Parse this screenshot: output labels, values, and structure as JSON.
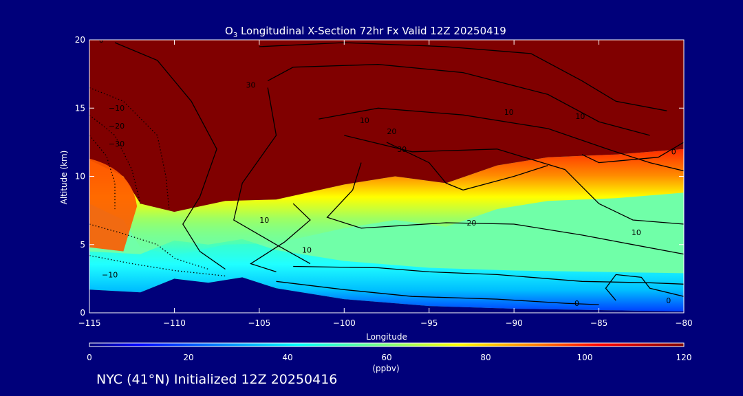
{
  "chart_data": {
    "type": "heatmap",
    "title_prefix": "O",
    "title_subscript": "3",
    "title_suffix": " Longitudinal X-Section 72hr  Fx Valid 12Z 20250419",
    "xlabel": "Longitude",
    "ylabel": "Altitude (km)",
    "xlim": [
      -115,
      -80
    ],
    "ylim": [
      0,
      20
    ],
    "x_ticks": [
      "−115",
      "−110",
      "−105",
      "−100",
      "−95",
      "−90",
      "−85",
      "−80"
    ],
    "x_tick_values": [
      -115,
      -110,
      -105,
      -100,
      -95,
      -90,
      -85,
      -80
    ],
    "y_ticks": [
      "0",
      "5",
      "10",
      "15",
      "20"
    ],
    "y_tick_values": [
      0,
      5,
      10,
      15,
      20
    ],
    "colorbar": {
      "label": "(ppbv)",
      "min": 0,
      "max": 120,
      "ticks": [
        "0",
        "20",
        "40",
        "60",
        "80",
        "100",
        "120"
      ],
      "tick_values": [
        0,
        20,
        40,
        60,
        80,
        100,
        120
      ],
      "colors": [
        "#00007a",
        "#0000ff",
        "#00a0ff",
        "#00ffff",
        "#80ff80",
        "#ffff00",
        "#ff8000",
        "#ff0000",
        "#800000"
      ]
    },
    "tropopause_height_km": [
      {
        "lon": -115,
        "alt": 11.2
      },
      {
        "lon": -113,
        "alt": 10.0
      },
      {
        "lon": -112,
        "alt": 8.0
      },
      {
        "lon": -110,
        "alt": 7.4
      },
      {
        "lon": -107,
        "alt": 8.2
      },
      {
        "lon": -104,
        "alt": 8.3
      },
      {
        "lon": -100,
        "alt": 9.4
      },
      {
        "lon": -97,
        "alt": 10.0
      },
      {
        "lon": -94,
        "alt": 9.5
      },
      {
        "lon": -91,
        "alt": 10.8
      },
      {
        "lon": -88,
        "alt": 11.4
      },
      {
        "lon": -84,
        "alt": 11.6
      },
      {
        "lon": -80,
        "alt": 12.0
      }
    ],
    "terrain_height_km": [
      {
        "lon": -115,
        "alt": 1.7
      },
      {
        "lon": -112,
        "alt": 1.5
      },
      {
        "lon": -110,
        "alt": 2.5
      },
      {
        "lon": -108,
        "alt": 2.2
      },
      {
        "lon": -106,
        "alt": 2.6
      },
      {
        "lon": -104,
        "alt": 1.8
      },
      {
        "lon": -100,
        "alt": 1.0
      },
      {
        "lon": -95,
        "alt": 0.5
      },
      {
        "lon": -90,
        "alt": 0.3
      },
      {
        "lon": -85,
        "alt": 0.2
      },
      {
        "lon": -80,
        "alt": 0.1
      }
    ],
    "contour_labels": [
      "0",
      "−10",
      "−20",
      "−30",
      "−10",
      "30",
      "10",
      "20",
      "10",
      "20",
      "10",
      "0",
      "0",
      "10",
      "0",
      "10",
      "10",
      "30"
    ]
  },
  "caption": "NYC (41°N) Initialized 12Z 20250416"
}
